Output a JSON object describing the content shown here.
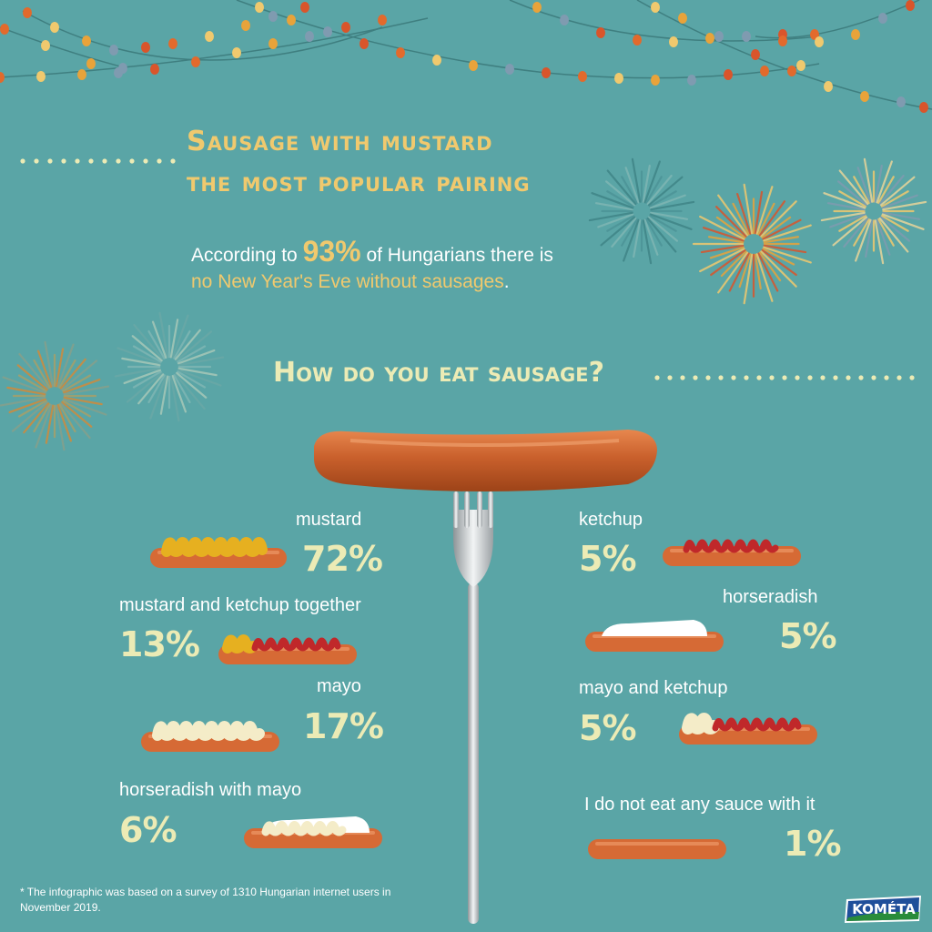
{
  "header": {
    "title_line1": "Sausage with mustard",
    "title_line2": "the most popular pairing"
  },
  "intro": {
    "text_before": "According to ",
    "stat": "93%",
    "text_after": " of Hungarians there is ",
    "highlight": "no New Year's Eve without sausages",
    "text_end": "."
  },
  "question": "How do you eat sausage?",
  "results": [
    {
      "label": "mustard",
      "percent": "72%",
      "value": 72,
      "sauce": "mustard"
    },
    {
      "label": "mustard and ketchup together",
      "percent": "13%",
      "value": 13,
      "sauce": "mustard-ketchup"
    },
    {
      "label": "mayo",
      "percent": "17%",
      "value": 17,
      "sauce": "mayo"
    },
    {
      "label": "horseradish with mayo",
      "percent": "6%",
      "value": 6,
      "sauce": "horseradish-mayo"
    },
    {
      "label": "ketchup",
      "percent": "5%",
      "value": 5,
      "sauce": "ketchup"
    },
    {
      "label": "horseradish",
      "percent": "5%",
      "value": 5,
      "sauce": "horseradish"
    },
    {
      "label": "mayo and ketchup",
      "percent": "5%",
      "value": 5,
      "sauce": "mayo-ketchup"
    },
    {
      "label": "I do not eat any sauce with it",
      "percent": "1%",
      "value": 1,
      "sauce": "none"
    }
  ],
  "footnote": "The infographic was based on a survey of 1310 Hungarian internet users in November 2019.",
  "footnote_marker": "*",
  "brand": "KOMÉTA",
  "colors": {
    "background": "#5aa5a6",
    "title": "#f0c96e",
    "question": "#ecebb5",
    "percent": "#ecebb5",
    "sausage": "#d66a35",
    "mustard": "#e6b020",
    "ketchup": "#c0282a",
    "mayo": "#f4ecc8",
    "horseradish": "#ffffff"
  }
}
